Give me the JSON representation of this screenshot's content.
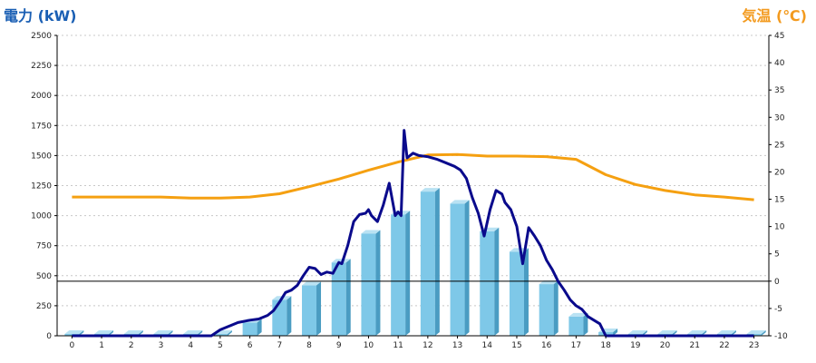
{
  "chart_data": {
    "type": "bar",
    "categories": [
      "0",
      "1",
      "2",
      "3",
      "4",
      "5",
      "6",
      "7",
      "8",
      "9",
      "10",
      "11",
      "12",
      "13",
      "14",
      "15",
      "16",
      "17",
      "18",
      "19",
      "20",
      "21",
      "22",
      "23"
    ],
    "ylabel": "電力 (kW)",
    "y2label": "気温 (℃)",
    "ylim": [
      0,
      2500
    ],
    "y2lim": [
      -10,
      45
    ],
    "yticks": [
      "0",
      "250",
      "500",
      "750",
      "1000",
      "1250",
      "1500",
      "1750",
      "2000",
      "2250",
      "2500"
    ],
    "y2ticks": [
      "-10",
      "-5",
      "0",
      "5",
      "10",
      "15",
      "20",
      "25",
      "30",
      "35",
      "40",
      "45"
    ],
    "grid": true,
    "colors": {
      "bars": "#7ec8e8",
      "bar_side": "#4a9cc2",
      "bar_top": "#b9e2f3",
      "power_line": "#0a0a8c",
      "temp_line": "#f5a011",
      "axis_title_left": "#1a5fb4",
      "axis_title_right": "#f39a1e"
    },
    "series": [
      {
        "type": "bar",
        "axis": "left",
        "values": [
          15,
          15,
          15,
          15,
          15,
          15,
          110,
          300,
          420,
          610,
          850,
          1010,
          1200,
          1100,
          870,
          700,
          430,
          160,
          30,
          15,
          15,
          15,
          15,
          15
        ]
      },
      {
        "type": "line",
        "axis": "right",
        "x": [
          0,
          1,
          2,
          3,
          4,
          5,
          6,
          7,
          8,
          9,
          10,
          11,
          12,
          13,
          14,
          15,
          16,
          17,
          18,
          19,
          20,
          21,
          22,
          23
        ],
        "values": [
          15.4,
          15.4,
          15.4,
          15.4,
          15.2,
          15.2,
          15.4,
          16,
          17.3,
          18.7,
          20.3,
          21.8,
          23.1,
          23.2,
          22.9,
          22.9,
          22.8,
          22.3,
          19.5,
          17.7,
          16.6,
          15.8,
          15.4,
          14.9
        ]
      },
      {
        "type": "line",
        "axis": "left",
        "x": [
          0,
          1,
          2,
          3,
          4,
          4.7,
          5,
          5.3,
          5.6,
          6,
          6.3,
          6.6,
          6.8,
          7,
          7.2,
          7.4,
          7.6,
          7.8,
          8,
          8.2,
          8.4,
          8.6,
          8.8,
          9,
          9.1,
          9.3,
          9.5,
          9.7,
          9.9,
          10,
          10.1,
          10.3,
          10.5,
          10.7,
          10.9,
          11,
          11.1,
          11.2,
          11.3,
          11.5,
          11.7,
          12,
          12.3,
          12.6,
          12.9,
          13.1,
          13.3,
          13.5,
          13.7,
          13.9,
          14.1,
          14.3,
          14.5,
          14.6,
          14.8,
          15,
          15.2,
          15.4,
          15.6,
          15.8,
          16,
          16.2,
          16.4,
          16.6,
          16.8,
          17,
          17.2,
          17.4,
          17.6,
          17.8,
          18,
          19,
          20,
          21,
          22,
          23
        ],
        "values": [
          0,
          0,
          0,
          0,
          0,
          0,
          50,
          80,
          110,
          130,
          140,
          170,
          210,
          280,
          360,
          380,
          420,
          500,
          570,
          560,
          510,
          530,
          520,
          610,
          600,
          750,
          950,
          1010,
          1020,
          1050,
          1000,
          950,
          1090,
          1270,
          1000,
          1030,
          1000,
          1710,
          1480,
          1520,
          1500,
          1490,
          1470,
          1440,
          1410,
          1380,
          1310,
          1150,
          1020,
          830,
          1050,
          1210,
          1180,
          1110,
          1050,
          910,
          600,
          900,
          830,
          750,
          630,
          550,
          450,
          380,
          300,
          250,
          220,
          160,
          130,
          100,
          0,
          0,
          0,
          0,
          0,
          0
        ]
      }
    ]
  }
}
